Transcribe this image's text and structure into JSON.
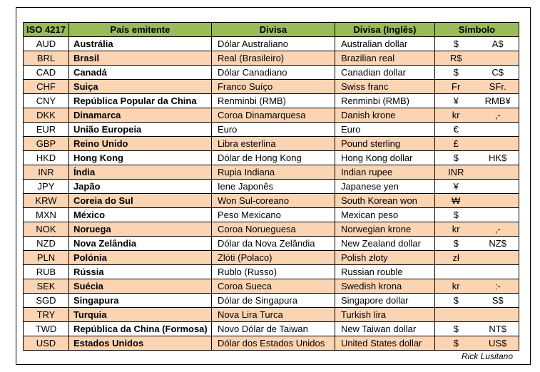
{
  "header": {
    "iso": "ISO 4217",
    "country": "País emitente",
    "currency": "Divisa",
    "currency_en": "Divisa (Inglês)",
    "symbol": "Símbolo"
  },
  "rows": [
    {
      "code": "AUD",
      "country": "Austrália",
      "currency": "Dólar Australiano",
      "currency_en": "Australian dollar",
      "symbol": "$",
      "symbol_alt": "A$"
    },
    {
      "code": "BRL",
      "country": "Brasil",
      "currency": "Real (Brasileiro)",
      "currency_en": "Brazilian real",
      "symbol": "R$",
      "symbol_alt": ""
    },
    {
      "code": "CAD",
      "country": "Canadá",
      "currency": "Dólar Canadiano",
      "currency_en": "Canadian dollar",
      "symbol": "$",
      "symbol_alt": "C$"
    },
    {
      "code": "CHF",
      "country": "Suiça",
      "currency": "Franco Suíço",
      "currency_en": "Swiss franc",
      "symbol": "Fr",
      "symbol_alt": "SFr."
    },
    {
      "code": "CNY",
      "country": "República Popular da China",
      "currency": "Renminbi (RMB)",
      "currency_en": "Renminbi (RMB)",
      "symbol": "¥",
      "symbol_alt": "RMB¥"
    },
    {
      "code": "DKK",
      "country": "Dinamarca",
      "currency": "Coroa Dinamarquesa",
      "currency_en": "Danish krone",
      "symbol": "kr",
      "symbol_alt": ",-"
    },
    {
      "code": "EUR",
      "country": "União Europeia",
      "currency": "Euro",
      "currency_en": "Euro",
      "symbol": "€",
      "symbol_alt": ""
    },
    {
      "code": "GBP",
      "country": "Reino Unido",
      "currency": "Libra esterlina",
      "currency_en": "Pound sterling",
      "symbol": "£",
      "symbol_alt": ""
    },
    {
      "code": "HKD",
      "country": "Hong Kong",
      "currency": "Dólar de Hong Kong",
      "currency_en": "Hong Kong dollar",
      "symbol": "$",
      "symbol_alt": "HK$"
    },
    {
      "code": "INR",
      "country": "Índia",
      "currency": "Rupia Indiana",
      "currency_en": "Indian rupee",
      "symbol": "INR",
      "symbol_alt": ""
    },
    {
      "code": "JPY",
      "country": "Japão",
      "currency": "Iene Japonês",
      "currency_en": "Japanese yen",
      "symbol": "¥",
      "symbol_alt": ""
    },
    {
      "code": "KRW",
      "country": "Coreia do Sul",
      "currency": "Won Sul-coreano",
      "currency_en": "South Korean won",
      "symbol": "₩",
      "symbol_alt": ""
    },
    {
      "code": "MXN",
      "country": "México",
      "currency": "Peso Mexicano",
      "currency_en": "Mexican peso",
      "symbol": "$",
      "symbol_alt": ""
    },
    {
      "code": "NOK",
      "country": "Noruega",
      "currency": "Coroa Norueguesa",
      "currency_en": "Norwegian krone",
      "symbol": "kr",
      "symbol_alt": ",-"
    },
    {
      "code": "NZD",
      "country": "Nova Zelândia",
      "currency": "Dólar da Nova Zelândia",
      "currency_en": "New Zealand dollar",
      "symbol": "$",
      "symbol_alt": "NZ$"
    },
    {
      "code": "PLN",
      "country": "Polónia",
      "currency": "Zlóti (Polaco)",
      "currency_en": "Polish złoty",
      "symbol": "zł",
      "symbol_alt": ""
    },
    {
      "code": "RUB",
      "country": "Rússia",
      "currency": "Rublo (Russo)",
      "currency_en": "Russian rouble",
      "symbol": "",
      "symbol_alt": ""
    },
    {
      "code": "SEK",
      "country": "Suécia",
      "currency": "Coroa Sueca",
      "currency_en": "Swedish krona",
      "symbol": "kr",
      "symbol_alt": ":-"
    },
    {
      "code": "SGD",
      "country": "Singapura",
      "currency": "Dólar de Singapura",
      "currency_en": "Singapore dollar",
      "symbol": "$",
      "symbol_alt": "S$"
    },
    {
      "code": "TRY",
      "country": "Turquia",
      "currency": "Nova Lira Turca",
      "currency_en": "Turkish lira",
      "symbol": "",
      "symbol_alt": ""
    },
    {
      "code": "TWD",
      "country": "República da China (Formosa)",
      "currency": "Novo Dólar de Taiwan",
      "currency_en": "New Taiwan dollar",
      "symbol": "$",
      "symbol_alt": "NT$"
    },
    {
      "code": "USD",
      "country": "Estados Unidos",
      "currency": "Dólar dos Estados Unidos",
      "currency_en": "United States dollar",
      "symbol": "$",
      "symbol_alt": "US$"
    }
  ],
  "credit": "Rick Lusitano",
  "colors": {
    "header_bg": "#9bbb59",
    "stripe_bg": "#fbd4b4",
    "row_bg": "#ffffff"
  }
}
